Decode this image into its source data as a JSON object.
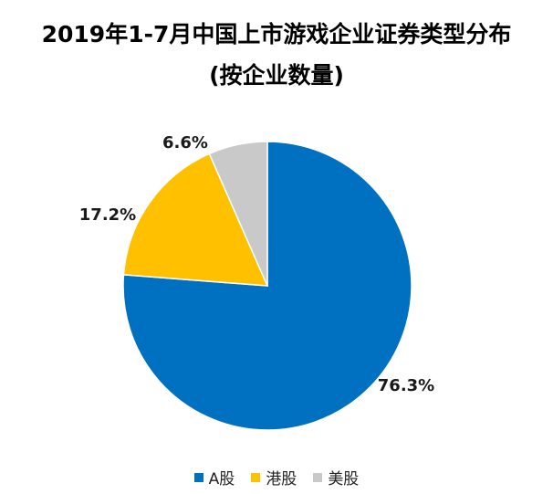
{
  "title_line1": "2019年1-7月中国上市游戏企业证券类型分布",
  "title_line2": "(按企业数量)",
  "chart_data": {
    "type": "pie",
    "categories": [
      "A股",
      "港股",
      "美股"
    ],
    "values": [
      76.3,
      17.2,
      6.6
    ],
    "labels": [
      "76.3%",
      "17.2%",
      "6.6%"
    ],
    "colors": [
      "#0070c0",
      "#ffc000",
      "#c9c9c9"
    ],
    "legend_position": "bottom"
  }
}
